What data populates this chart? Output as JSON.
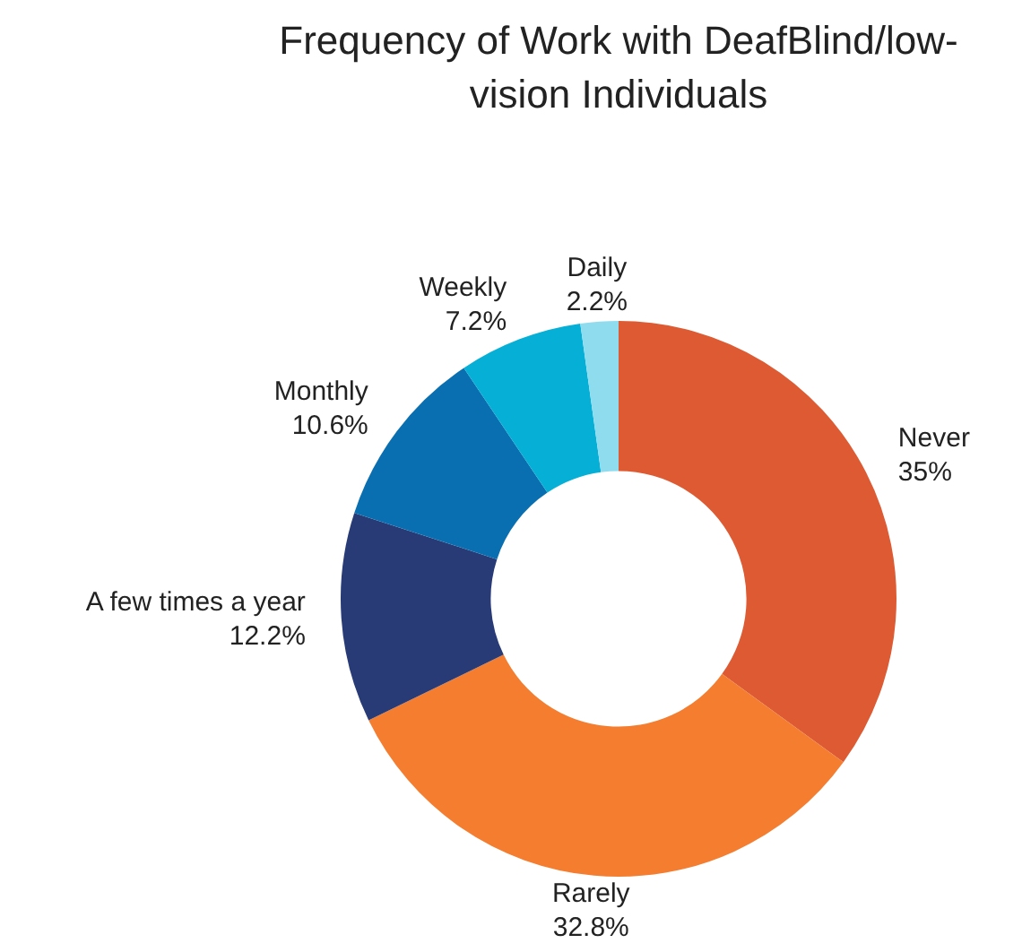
{
  "chart_data": {
    "type": "donut",
    "title": "Frequency of Work with DeafBlind/low-vision Individuals",
    "categories": [
      "Never",
      "Rarely",
      "A few times a year",
      "Monthly",
      "Weekly",
      "Daily"
    ],
    "values": [
      35,
      32.8,
      12.2,
      10.6,
      7.2,
      2.2
    ],
    "value_labels": [
      "35%",
      "32.8%",
      "12.2%",
      "10.6%",
      "7.2%",
      "2.2%"
    ],
    "colors": [
      "#dd5a32",
      "#f47d30",
      "#283b77",
      "#0a6fb0",
      "#06afd6",
      "#8edcee"
    ],
    "legend": false
  }
}
